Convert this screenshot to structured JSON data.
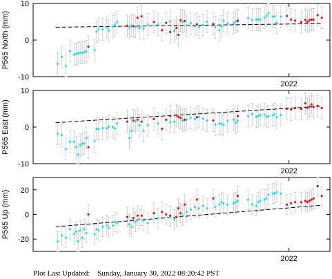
{
  "colors": {
    "cyan": "#22ddee",
    "red": "#dd1111",
    "errorbar": "#c8c8c8",
    "trend": "#000000",
    "frame": "#000000"
  },
  "footer": {
    "label": "Plot Last Updated:",
    "value": "Sunday, January 30, 2022 08:20:42 PST"
  },
  "chart_data": [
    {
      "type": "scatter",
      "ylabel": "P565 North (mm)",
      "ylim": [
        -10,
        10
      ],
      "yticks": [
        -10,
        0,
        10
      ],
      "xlim": [
        2020.75,
        2022.2
      ],
      "xtick_labels": [
        {
          "x": 2022.0,
          "label": "2022"
        }
      ],
      "show_xtick_label": true,
      "error_bar_mm": 3,
      "trend": {
        "x0": 2020.86,
        "y0": 3.5,
        "x1": 2022.16,
        "y1": 4.5
      },
      "series": [
        {
          "color": "cyan",
          "x": [
            2020.87,
            2020.89,
            2020.91,
            2020.93,
            2020.95,
            2020.96,
            2020.97,
            2020.98,
            2020.99,
            2021.0,
            2021.01,
            2021.05,
            2021.06,
            2021.07,
            2021.09,
            2021.11,
            2021.12,
            2021.14,
            2021.15,
            2021.16,
            2021.22,
            2021.23,
            2021.25,
            2021.27,
            2021.29,
            2021.31,
            2021.36,
            2021.42,
            2021.44,
            2021.48,
            2021.5,
            2021.52,
            2021.54,
            2021.56,
            2021.58,
            2021.6,
            2021.64,
            2021.66,
            2021.67,
            2021.68,
            2021.7,
            2021.73,
            2021.74,
            2021.75,
            2021.8,
            2021.82,
            2021.84,
            2021.85,
            2021.86,
            2021.88,
            2021.89,
            2021.9,
            2021.92,
            2021.93,
            2021.94,
            2021.96
          ],
          "y": [
            -6.5,
            -4.6,
            -7.1,
            -3,
            -4,
            -3.8,
            -3.6,
            -3.4,
            -3.5,
            -3.3,
            -3.1,
            -2.7,
            2.3,
            3,
            2.9,
            3.4,
            2.6,
            3.7,
            4.2,
            4.9,
            3.4,
            4,
            3.6,
            3.3,
            3.1,
            4.3,
            4.2,
            5.1,
            2.5,
            5,
            4,
            4.6,
            3.8,
            3.5,
            4.1,
            5,
            3.5,
            2.7,
            3.7,
            5.3,
            4.5,
            4.7,
            5.1,
            5.5,
            6,
            5.5,
            5.6,
            5.7,
            5.5,
            6.1,
            6.6,
            7.3,
            6.4,
            6.5,
            4.7,
            6.4
          ]
        },
        {
          "color": "red",
          "x": [
            2021.02,
            2021.21,
            2021.24,
            2021.26,
            2021.28,
            2021.34,
            2021.38,
            2021.4,
            2021.42,
            2021.45,
            2021.46,
            2021.47,
            2021.49,
            2021.55,
            2021.63,
            2021.75,
            2021.99,
            2022.01,
            2022.03,
            2022.06,
            2022.08,
            2022.09,
            2022.1,
            2022.11,
            2022.12,
            2022.14,
            2022.16
          ],
          "y": [
            -1.8,
            3.9,
            3.8,
            6.1,
            6.5,
            4.9,
            2.7,
            4.7,
            2.2,
            3.3,
            1.4,
            5.4,
            5.2,
            4.3,
            4.4,
            5.2,
            6.6,
            5.6,
            5.3,
            4.9,
            5.5,
            5,
            5.4,
            5.6,
            5.6,
            6.8,
            6.1
          ]
        }
      ]
    },
    {
      "type": "scatter",
      "ylabel": "P565 East (mm)",
      "ylim": [
        -10,
        10
      ],
      "yticks": [
        -10,
        0,
        10
      ],
      "xlim": [
        2020.75,
        2022.2
      ],
      "xtick_labels": [
        {
          "x": 2022.0,
          "label": "2022"
        }
      ],
      "show_xtick_label": true,
      "error_bar_mm": 3,
      "trend": {
        "x0": 2020.86,
        "y0": 1.2,
        "x1": 2022.16,
        "y1": 5.7
      },
      "series": [
        {
          "color": "cyan",
          "x": [
            2020.87,
            2020.89,
            2020.91,
            2020.93,
            2020.95,
            2020.96,
            2020.97,
            2020.98,
            2020.99,
            2021.0,
            2021.01,
            2021.05,
            2021.06,
            2021.07,
            2021.09,
            2021.11,
            2021.12,
            2021.14,
            2021.15,
            2021.16,
            2021.22,
            2021.23,
            2021.25,
            2021.27,
            2021.29,
            2021.31,
            2021.36,
            2021.42,
            2021.44,
            2021.48,
            2021.5,
            2021.52,
            2021.54,
            2021.56,
            2021.58,
            2021.6,
            2021.64,
            2021.66,
            2021.67,
            2021.68,
            2021.7,
            2021.73,
            2021.74,
            2021.75,
            2021.8,
            2021.82,
            2021.84,
            2021.85,
            2021.86,
            2021.88,
            2021.89,
            2021.9,
            2021.92,
            2021.93,
            2021.94,
            2021.96
          ],
          "y": [
            -1.8,
            -2.2,
            -6,
            -4,
            -4,
            -5.5,
            -7.5,
            -5,
            -4.5,
            -4.5,
            -3,
            -3.9,
            -0.5,
            -0.5,
            -0.3,
            -0.3,
            0.1,
            0,
            -0.4,
            1,
            -3,
            -1,
            1.5,
            0.5,
            -1,
            0.5,
            1,
            1.3,
            1.5,
            1.8,
            2,
            2.5,
            2.2,
            2.8,
            2.3,
            1.8,
            0.7,
            1,
            0.9,
            0.6,
            1.7,
            2,
            1.2,
            1.7,
            3,
            3.5,
            2.8,
            3,
            3.3,
            3.4,
            2.8,
            3,
            3.2,
            3.5,
            2.7,
            3.3
          ]
        },
        {
          "color": "red",
          "x": [
            2021.02,
            2021.21,
            2021.24,
            2021.26,
            2021.28,
            2021.34,
            2021.38,
            2021.4,
            2021.42,
            2021.45,
            2021.46,
            2021.47,
            2021.49,
            2021.55,
            2021.63,
            2021.75,
            2021.99,
            2022.01,
            2022.03,
            2022.06,
            2022.08,
            2022.09,
            2022.1,
            2022.11,
            2022.12,
            2022.14,
            2022.16
          ],
          "y": [
            -5.5,
            1.5,
            1.8,
            2,
            1.5,
            2.2,
            -0.5,
            2,
            3,
            3.2,
            2.8,
            2.5,
            2,
            2.7,
            1.8,
            3,
            5,
            4.8,
            5.2,
            5,
            6.5,
            5.2,
            5.6,
            6.2,
            5.5,
            5.8,
            5.2
          ]
        }
      ]
    },
    {
      "type": "scatter",
      "ylabel": "P565 Up (mm)",
      "ylim": [
        -30,
        30
      ],
      "yticks": [
        -20,
        0,
        20
      ],
      "xlim": [
        2020.75,
        2022.2
      ],
      "xtick_labels": [
        {
          "x": 2022.0,
          "label": "2022"
        }
      ],
      "show_xtick_label": true,
      "error_bar_mm": 8,
      "trend": {
        "x0": 2020.86,
        "y0": -10,
        "x1": 2022.16,
        "y1": 7.5
      },
      "series": [
        {
          "color": "cyan",
          "x": [
            2020.87,
            2020.89,
            2020.91,
            2020.93,
            2020.95,
            2020.96,
            2020.97,
            2020.98,
            2020.99,
            2021.0,
            2021.01,
            2021.05,
            2021.06,
            2021.07,
            2021.09,
            2021.11,
            2021.12,
            2021.14,
            2021.15,
            2021.16,
            2021.22,
            2021.23,
            2021.25,
            2021.27,
            2021.29,
            2021.31,
            2021.36,
            2021.42,
            2021.44,
            2021.48,
            2021.5,
            2021.52,
            2021.54,
            2021.56,
            2021.58,
            2021.6,
            2021.64,
            2021.66,
            2021.67,
            2021.68,
            2021.7,
            2021.73,
            2021.74,
            2021.75,
            2021.8,
            2021.82,
            2021.84,
            2021.85,
            2021.86,
            2021.88,
            2021.89,
            2021.9,
            2021.92,
            2021.93,
            2021.94,
            2021.96
          ],
          "y": [
            -22,
            -17,
            -19,
            -12,
            -16,
            -14,
            -22,
            -13,
            -19,
            -12,
            -15,
            -16,
            -12,
            -13,
            -10,
            -9,
            -11,
            -9,
            -6,
            -7,
            -8,
            -10,
            -6,
            -4,
            -5,
            -7,
            -3,
            -2,
            -4,
            -1,
            2,
            4,
            6,
            5,
            7,
            5,
            6,
            8,
            10,
            9,
            8,
            9,
            10,
            11,
            12,
            8,
            7,
            10,
            11,
            12,
            13,
            16,
            17,
            17,
            18,
            17
          ]
        },
        {
          "color": "red",
          "x": [
            2021.02,
            2021.21,
            2021.24,
            2021.26,
            2021.28,
            2021.34,
            2021.38,
            2021.4,
            2021.42,
            2021.45,
            2021.46,
            2021.47,
            2021.49,
            2021.55,
            2021.63,
            2021.75,
            2021.99,
            2022.01,
            2022.03,
            2022.06,
            2022.08,
            2022.09,
            2022.1,
            2022.11,
            2022.12,
            2022.14,
            2022.16
          ],
          "y": [
            0,
            -2,
            -3,
            -1,
            -1,
            1,
            2,
            0,
            -1,
            -2,
            5,
            1,
            8,
            12,
            13,
            15,
            8,
            9,
            10,
            10,
            11,
            10,
            11,
            12,
            13,
            23,
            15
          ]
        }
      ]
    }
  ]
}
